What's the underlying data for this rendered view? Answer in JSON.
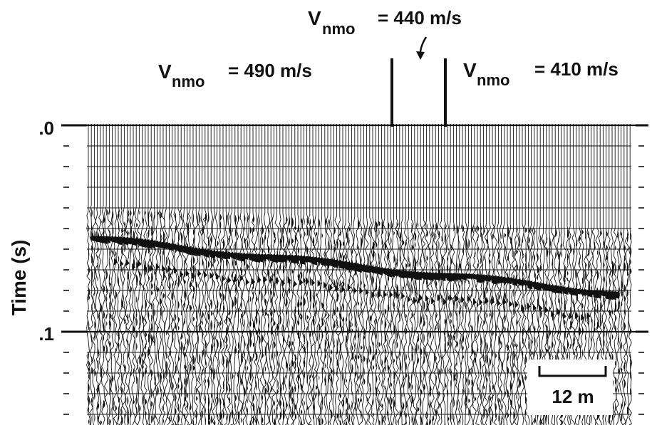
{
  "labels": {
    "left": {
      "main": "V",
      "sub": "nmo",
      "value": "= 490 m/s"
    },
    "center": {
      "main": "V",
      "sub": "nmo",
      "value": "= 440 m/s"
    },
    "right": {
      "main": "V",
      "sub": "nmo",
      "value": "= 410 m/s"
    }
  },
  "axis": {
    "ylabel": "Time (s)",
    "ticks": [
      {
        "value": 0.0,
        "label": ".0"
      },
      {
        "value": 0.1,
        "label": ".1"
      }
    ],
    "minor_step": 0.01
  },
  "scale_bar": {
    "label": "12 m"
  },
  "colors": {
    "ink": "#111111",
    "paper": "#ffffff"
  }
}
